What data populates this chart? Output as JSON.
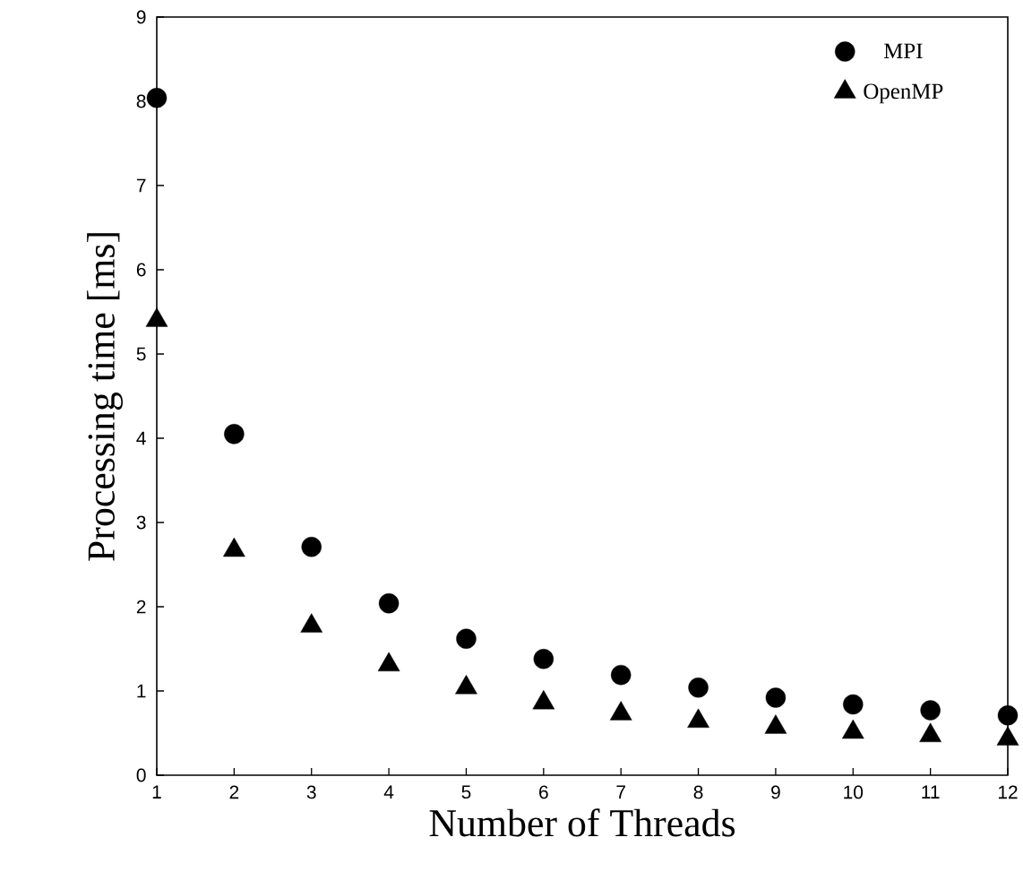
{
  "chart_data": {
    "type": "scatter",
    "xlabel": "Number of Threads",
    "ylabel": "Processing time [ms]",
    "x": [
      1,
      2,
      3,
      4,
      5,
      6,
      7,
      8,
      9,
      10,
      11,
      12
    ],
    "series": [
      {
        "name": "MPI",
        "color": "#000000",
        "marker": "circle",
        "values": [
          8.04,
          4.05,
          2.71,
          2.04,
          1.62,
          1.38,
          1.19,
          1.04,
          0.92,
          0.84,
          0.77,
          0.71
        ]
      },
      {
        "name": "OpenMP",
        "color": "#000000",
        "marker": "triangle",
        "values": [
          5.4,
          2.67,
          1.77,
          1.31,
          1.04,
          0.86,
          0.73,
          0.64,
          0.57,
          0.51,
          0.47,
          0.43
        ]
      }
    ],
    "xlim": [
      1,
      12
    ],
    "ylim": [
      0,
      9
    ],
    "xticks": [
      1,
      2,
      3,
      4,
      5,
      6,
      7,
      8,
      9,
      10,
      11,
      12
    ],
    "yticks": [
      0,
      1,
      2,
      3,
      4,
      5,
      6,
      7,
      8,
      9
    ],
    "grid": false,
    "legend": "top right"
  }
}
